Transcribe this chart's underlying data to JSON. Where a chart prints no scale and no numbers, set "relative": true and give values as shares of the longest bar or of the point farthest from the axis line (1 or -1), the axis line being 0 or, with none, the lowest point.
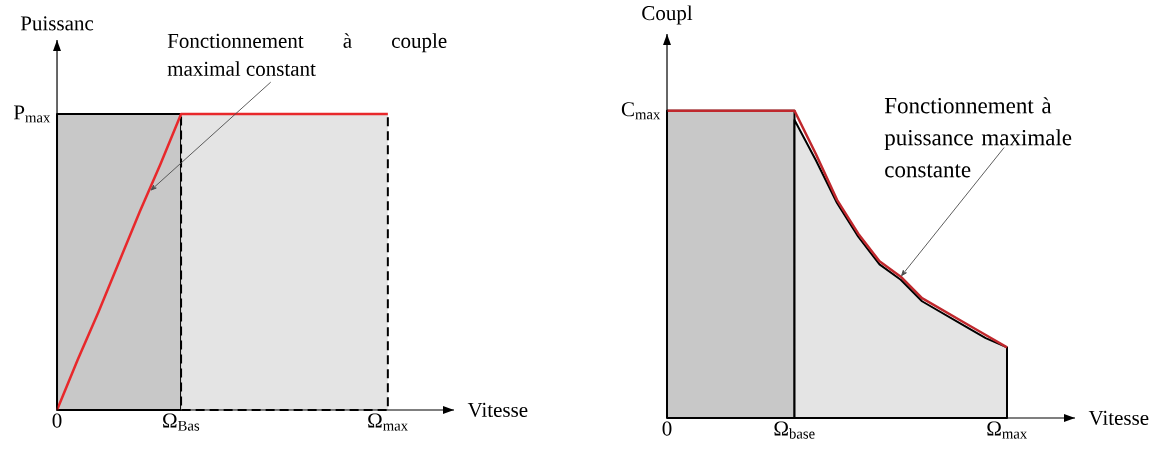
{
  "chart_data": [
    {
      "type": "line",
      "relative": true,
      "xlabel": "Vitesse",
      "ylabel": "Puissanc",
      "categories": [
        "0",
        null,
        null,
        null,
        null,
        null,
        "Ω$_{Bas}$",
        null,
        null,
        null,
        null,
        null,
        null,
        null,
        null,
        null,
        "Ω$_{max}$"
      ],
      "annotations": [
        "P$_{max}$",
        "Fonctionnement à couple maximal constant"
      ],
      "series": [
        {
          "type": "area",
          "color": "#c8c8c8",
          "values": [
            1,
            1,
            1,
            1,
            1,
            1,
            1,
            null,
            null,
            null,
            null,
            null,
            null,
            null,
            null,
            null,
            null
          ]
        },
        {
          "type": "area",
          "color": "#e4e4e4",
          "line_style": "dashed",
          "values": [
            null,
            null,
            null,
            null,
            null,
            null,
            1,
            1,
            1,
            1,
            1,
            1,
            1,
            1,
            1,
            1,
            1
          ]
        },
        {
          "color": "#e8282b",
          "values": [
            0,
            0.17,
            0.33,
            0.5,
            0.67,
            0.83,
            1,
            1,
            1,
            1,
            1,
            1,
            1,
            1,
            1,
            1,
            1
          ]
        }
      ]
    },
    {
      "type": "line",
      "relative": true,
      "xlabel": "Vitesse",
      "ylabel": "Coupl",
      "categories": [
        "0",
        null,
        null,
        null,
        null,
        null,
        "Ω$_{base}$",
        null,
        null,
        null,
        null,
        null,
        null,
        null,
        null,
        null,
        "Ω$_{max}$"
      ],
      "annotations": [
        "C$_{max}$",
        "Fonctionnement à puissance maximale constante"
      ],
      "series": [
        {
          "type": "area",
          "color": "#c8c8c8",
          "values": [
            1,
            1,
            1,
            1,
            1,
            1,
            1,
            null,
            null,
            null,
            null,
            null,
            null,
            null,
            null,
            null,
            null
          ]
        },
        {
          "type": "area",
          "color": "#e4e4e4",
          "values": [
            null,
            null,
            null,
            null,
            null,
            null,
            0.97,
            0.84,
            0.7,
            0.59,
            0.5,
            0.45,
            0.38,
            0.34,
            0.3,
            0.26,
            0.23
          ]
        },
        {
          "color": "#c0282d",
          "values": [
            1,
            1,
            1,
            1,
            1,
            1,
            1,
            0.86,
            0.71,
            0.6,
            0.51,
            0.46,
            0.39,
            0.35,
            0.31,
            0.27,
            0.23
          ]
        }
      ]
    }
  ]
}
